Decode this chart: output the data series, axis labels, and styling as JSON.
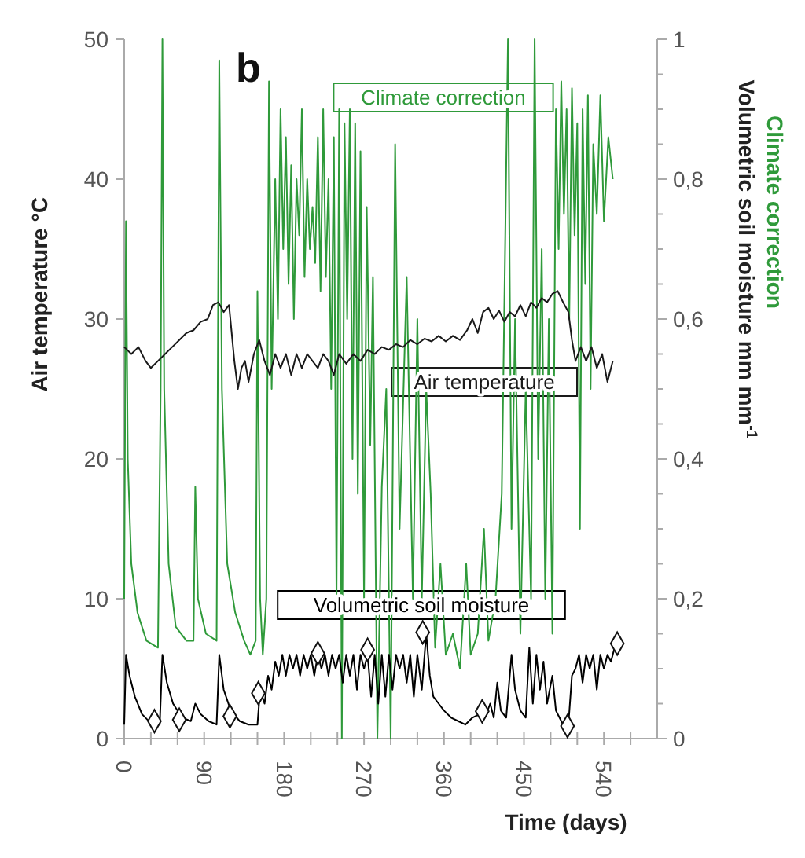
{
  "chart_data": {
    "type": "line",
    "xlabel": "Time (days)",
    "ylabel": "Air temperature °C",
    "y2label": "Volumetric soil moisture mm mm$^{-1}$",
    "annotations": [
      "b",
      "Climate correction"
    ],
    "xlim": [
      0,
      600
    ],
    "xticks": [
      0,
      {
        "value": 30,
        "label": null
      },
      {
        "value": 60,
        "label": null
      },
      90,
      {
        "value": 120,
        "label": null
      },
      {
        "value": 150,
        "label": null
      },
      180,
      {
        "value": 210,
        "label": null
      },
      {
        "value": 240,
        "label": null
      },
      270,
      {
        "value": 300,
        "label": null
      },
      {
        "value": 330,
        "label": null
      },
      360,
      {
        "value": 390,
        "label": null
      },
      {
        "value": 420,
        "label": null
      },
      450,
      {
        "value": 480,
        "label": null
      },
      {
        "value": 510,
        "label": null
      },
      540,
      {
        "value": 570,
        "label": null
      }
    ],
    "ylim": [
      0,
      50
    ],
    "yticks": [
      0,
      10,
      20,
      30,
      40,
      50
    ],
    "y2lim": [
      0,
      1
    ],
    "y2ticks": [
      0,
      {
        "value": 0.05,
        "label": null
      },
      {
        "value": 0.1,
        "label": null
      },
      {
        "value": 0.15,
        "label": null
      },
      {
        "value": 0.2,
        "label": "0,2"
      },
      {
        "value": 0.25,
        "label": null
      },
      {
        "value": 0.3,
        "label": null
      },
      {
        "value": 0.35,
        "label": null
      },
      {
        "value": 0.4,
        "label": "0,4"
      },
      {
        "value": 0.45,
        "label": null
      },
      {
        "value": 0.5,
        "label": null
      },
      {
        "value": 0.55,
        "label": null
      },
      {
        "value": 0.6,
        "label": "0,6"
      },
      {
        "value": 0.65,
        "label": null
      },
      {
        "value": 0.7,
        "label": null
      },
      {
        "value": 0.75,
        "label": null
      },
      {
        "value": 0.8,
        "label": "0,8"
      },
      {
        "value": 0.85,
        "label": null
      },
      {
        "value": 0.9,
        "label": null
      },
      {
        "value": 0.95,
        "label": null
      },
      1
    ],
    "grid": false,
    "legend": false,
    "marker": "none",
    "line_style": "solid",
    "series": [
      {
        "name": "Climate correction",
        "axis": "y2",
        "color": "#2f9a3a",
        "x": [
          0,
          2,
          4,
          8,
          15,
          25,
          38,
          41,
          43,
          45,
          50,
          58,
          70,
          78,
          80,
          83,
          92,
          104,
          107,
          110,
          116,
          125,
          135,
          142,
          148,
          150,
          153,
          156,
          160,
          163,
          166,
          170,
          173,
          176,
          179,
          182,
          185,
          188,
          191,
          194,
          197,
          200,
          203,
          206,
          209,
          212,
          215,
          218,
          221,
          224,
          227,
          230,
          233,
          236,
          239,
          242,
          245,
          248,
          251,
          254,
          257,
          260,
          263,
          266,
          270,
          273,
          277,
          280,
          285,
          290,
          295,
          300,
          305,
          310,
          318,
          325,
          330,
          335,
          340,
          345,
          350,
          356,
          362,
          370,
          378,
          385,
          390,
          398,
          405,
          410,
          418,
          425,
          432,
          436,
          440,
          446,
          452,
          458,
          462,
          466,
          470,
          474,
          478,
          482,
          486,
          489,
          492,
          495,
          498,
          501,
          504,
          507,
          510,
          513,
          516,
          519,
          522,
          525,
          528,
          532,
          536,
          540,
          545,
          550
        ],
        "values": [
          0.2,
          0.74,
          0.4,
          0.25,
          0.18,
          0.14,
          0.13,
          0.5,
          1.0,
          0.5,
          0.25,
          0.16,
          0.14,
          0.14,
          0.36,
          0.2,
          0.15,
          0.14,
          0.97,
          0.5,
          0.25,
          0.18,
          0.14,
          0.12,
          0.14,
          0.64,
          0.2,
          0.12,
          0.2,
          0.94,
          0.5,
          0.8,
          0.6,
          0.9,
          0.7,
          0.86,
          0.65,
          0.82,
          0.6,
          0.8,
          0.72,
          0.9,
          0.66,
          0.8,
          0.7,
          0.76,
          0.68,
          0.86,
          0.64,
          0.9,
          0.66,
          0.8,
          0.5,
          0.86,
          0.2,
          0.9,
          0.0,
          0.88,
          0.6,
          0.9,
          0.4,
          0.88,
          0.35,
          0.84,
          0.2,
          0.76,
          0.42,
          0.66,
          0.0,
          0.36,
          0.5,
          0.0,
          0.85,
          0.3,
          0.66,
          0.2,
          0.6,
          0.2,
          0.5,
          0.35,
          0.13,
          0.25,
          0.12,
          0.15,
          0.1,
          0.25,
          0.12,
          0.15,
          0.3,
          0.14,
          0.2,
          0.35,
          1.0,
          0.3,
          0.6,
          0.15,
          0.5,
          0.2,
          1.0,
          0.4,
          0.7,
          0.2,
          0.6,
          0.15,
          0.9,
          0.7,
          0.94,
          0.75,
          0.9,
          0.6,
          0.93,
          0.72,
          0.88,
          0.3,
          0.9,
          0.65,
          0.92,
          0.5,
          0.85,
          0.75,
          0.92,
          0.74,
          0.86,
          0.8
        ]
      },
      {
        "name": "Air temperature",
        "axis": "y",
        "color": "#1a1a1a",
        "x": [
          0,
          8,
          16,
          24,
          30,
          38,
          46,
          54,
          62,
          70,
          78,
          86,
          94,
          100,
          106,
          112,
          118,
          124,
          128,
          132,
          136,
          140,
          146,
          152,
          158,
          164,
          170,
          176,
          182,
          188,
          194,
          200,
          206,
          212,
          218,
          224,
          230,
          236,
          242,
          250,
          258,
          266,
          274,
          282,
          290,
          298,
          306,
          314,
          322,
          330,
          338,
          346,
          354,
          362,
          370,
          378,
          386,
          392,
          398,
          404,
          410,
          416,
          422,
          428,
          434,
          440,
          446,
          452,
          458,
          464,
          470,
          476,
          482,
          488,
          494,
          500,
          504,
          508,
          514,
          520,
          526,
          532,
          538,
          544,
          550
        ],
        "values": [
          28,
          27.5,
          28,
          27,
          26.5,
          27,
          27.5,
          28,
          28.5,
          29,
          29.2,
          29.8,
          30,
          31,
          31.2,
          30.5,
          31,
          27,
          25,
          26.5,
          27,
          25.5,
          27.5,
          28.5,
          27,
          26,
          27.5,
          26.5,
          27.5,
          26,
          27.5,
          26.5,
          27.5,
          27,
          26.5,
          27.5,
          27,
          26,
          27.5,
          26.8,
          27.5,
          27,
          27.8,
          27.5,
          28,
          27.8,
          28.2,
          28,
          28.5,
          28.2,
          28.6,
          28.4,
          28.8,
          28.4,
          28.8,
          28.5,
          29.2,
          30,
          29,
          30.5,
          30.8,
          30,
          30.6,
          29.8,
          30.5,
          30.2,
          31,
          30.2,
          31.2,
          30.8,
          31.5,
          31.2,
          31.8,
          32,
          31.2,
          30.5,
          28.5,
          27,
          28,
          27,
          28,
          26.5,
          27.5,
          25.5,
          27
        ]
      },
      {
        "name": "Volumetric soil moisture",
        "axis": "y2",
        "color": "#000000",
        "x": [
          0,
          2,
          6,
          12,
          20,
          30,
          40,
          43,
          48,
          55,
          65,
          75,
          80,
          86,
          95,
          104,
          107,
          112,
          120,
          130,
          140,
          150,
          153,
          158,
          162,
          166,
          170,
          174,
          178,
          182,
          186,
          190,
          194,
          198,
          202,
          206,
          210,
          214,
          218,
          222,
          226,
          230,
          234,
          238,
          242,
          246,
          250,
          254,
          258,
          262,
          266,
          270,
          274,
          278,
          282,
          286,
          290,
          294,
          298,
          302,
          306,
          310,
          314,
          318,
          322,
          326,
          330,
          335,
          340,
          344,
          348,
          354,
          360,
          368,
          376,
          384,
          392,
          400,
          406,
          412,
          416,
          420,
          424,
          430,
          436,
          440,
          446,
          452,
          456,
          460,
          464,
          468,
          472,
          476,
          482,
          486,
          490,
          496,
          500,
          504,
          508,
          512,
          516,
          520,
          524,
          528,
          532,
          536,
          540,
          544,
          548,
          552
        ],
        "values": [
          0.02,
          0.12,
          0.09,
          0.06,
          0.035,
          0.022,
          0.02,
          0.12,
          0.08,
          0.05,
          0.03,
          0.025,
          0.05,
          0.035,
          0.025,
          0.02,
          0.12,
          0.07,
          0.04,
          0.025,
          0.02,
          0.02,
          0.07,
          0.05,
          0.09,
          0.07,
          0.11,
          0.09,
          0.12,
          0.09,
          0.12,
          0.1,
          0.12,
          0.09,
          0.12,
          0.1,
          0.12,
          0.09,
          0.12,
          0.1,
          0.12,
          0.09,
          0.12,
          0.1,
          0.12,
          0.08,
          0.12,
          0.09,
          0.12,
          0.07,
          0.12,
          0.1,
          0.12,
          0.06,
          0.12,
          0.05,
          0.12,
          0.06,
          0.12,
          0.07,
          0.12,
          0.1,
          0.12,
          0.08,
          0.12,
          0.06,
          0.12,
          0.07,
          0.15,
          0.09,
          0.06,
          0.05,
          0.04,
          0.03,
          0.025,
          0.02,
          0.03,
          0.035,
          0.03,
          0.05,
          0.03,
          0.08,
          0.04,
          0.03,
          0.12,
          0.07,
          0.04,
          0.03,
          0.13,
          0.05,
          0.12,
          0.07,
          0.11,
          0.05,
          0.09,
          0.04,
          0.03,
          0.015,
          0.02,
          0.09,
          0.1,
          0.12,
          0.08,
          0.12,
          0.1,
          0.12,
          0.07,
          0.12,
          0.1,
          0.12,
          0.11,
          0.13
        ]
      },
      {
        "type": "scatter",
        "axis": "y2",
        "marker": "diamond",
        "color": "#111111",
        "x": [
          34,
          62,
          119,
          151,
          218,
          274,
          336,
          403,
          499,
          555
        ],
        "values": [
          0.025,
          0.027,
          0.032,
          0.065,
          0.122,
          0.127,
          0.152,
          0.039,
          0.018,
          0.136
        ]
      }
    ]
  }
}
